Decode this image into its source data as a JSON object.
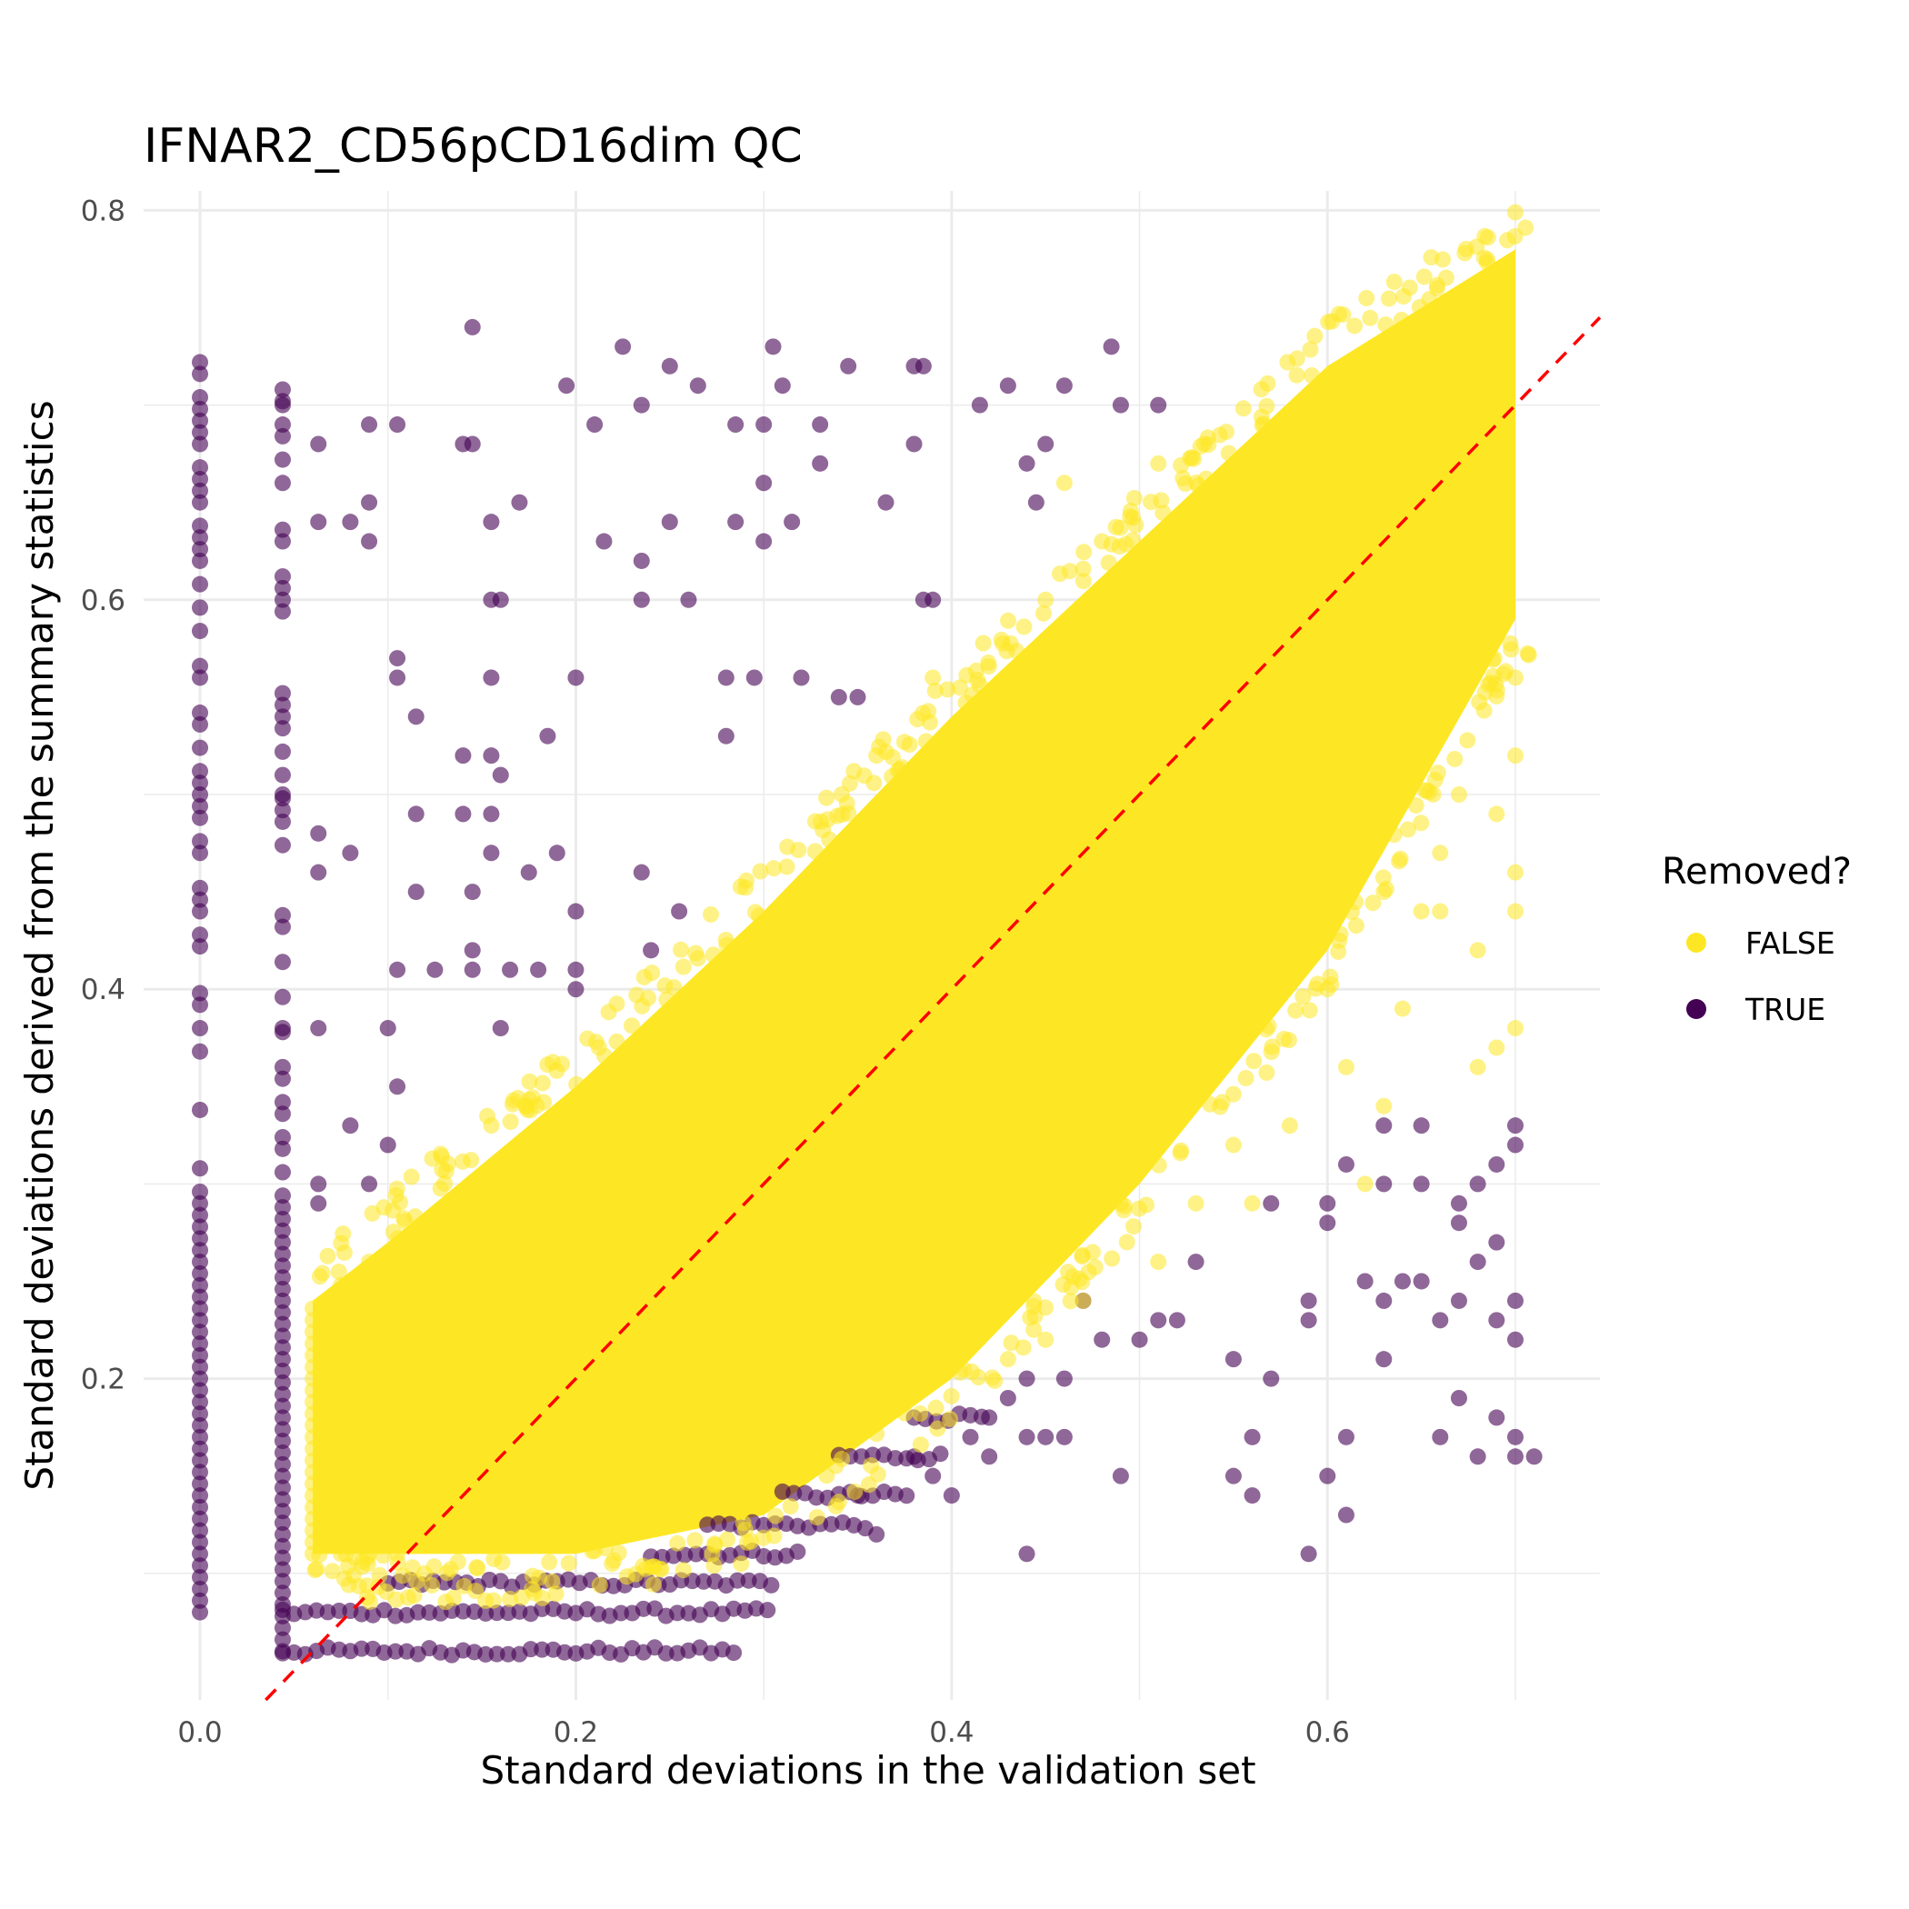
{
  "chart_data": {
    "type": "scatter",
    "title": "IFNAR2_CD56pCD16dim QC",
    "xlabel": "Standard deviations in the validation set",
    "ylabel": "Standard deviations derived from the summary statistics",
    "xlim": [
      -0.03,
      0.745
    ],
    "ylim": [
      0.035,
      0.81
    ],
    "xticks": [
      0.0,
      0.2,
      0.4,
      0.6
    ],
    "yticks": [
      0.2,
      0.4,
      0.6,
      0.8
    ],
    "xtick_labels": [
      "0.0",
      "0.2",
      "0.4",
      "0.6"
    ],
    "ytick_labels": [
      "0.2",
      "0.4",
      "0.6",
      "0.8"
    ],
    "grid": true,
    "legend": {
      "title": "Removed?",
      "position": "right",
      "entries": [
        {
          "label": "FALSE",
          "color": "#fde725"
        },
        {
          "label": "TRUE",
          "color": "#440154"
        }
      ]
    },
    "reference_line": {
      "type": "identity",
      "slope": 1,
      "intercept": 0,
      "color": "#ff0000",
      "style": "dashed"
    },
    "series": [
      {
        "name": "FALSE",
        "color": "#fde725",
        "opacity": 0.55,
        "band": {
          "x_range": [
            0.06,
            0.71
          ],
          "upper": [
            [
              0.06,
              0.24
            ],
            [
              0.1,
              0.27
            ],
            [
              0.2,
              0.35
            ],
            [
              0.3,
              0.44
            ],
            [
              0.4,
              0.54
            ],
            [
              0.5,
              0.63
            ],
            [
              0.6,
              0.72
            ],
            [
              0.7,
              0.78
            ]
          ],
          "lower": [
            [
              0.06,
              0.11
            ],
            [
              0.2,
              0.11
            ],
            [
              0.3,
              0.13
            ],
            [
              0.4,
              0.2
            ],
            [
              0.5,
              0.3
            ],
            [
              0.6,
              0.42
            ],
            [
              0.7,
              0.59
            ]
          ]
        },
        "outliers": [
          [
            0.51,
            0.67
          ],
          [
            0.54,
            0.62
          ],
          [
            0.45,
            0.6
          ],
          [
            0.46,
            0.66
          ],
          [
            0.48,
            0.63
          ],
          [
            0.39,
            0.56
          ],
          [
            0.36,
            0.52
          ],
          [
            0.61,
            0.36
          ],
          [
            0.58,
            0.33
          ],
          [
            0.55,
            0.32
          ],
          [
            0.56,
            0.29
          ],
          [
            0.62,
            0.3
          ],
          [
            0.63,
            0.34
          ],
          [
            0.66,
            0.44
          ],
          [
            0.68,
            0.42
          ],
          [
            0.69,
            0.49
          ],
          [
            0.7,
            0.46
          ],
          [
            0.7,
            0.44
          ],
          [
            0.69,
            0.37
          ],
          [
            0.7,
            0.38
          ],
          [
            0.68,
            0.36
          ],
          [
            0.64,
            0.39
          ],
          [
            0.6,
            0.4
          ],
          [
            0.63,
            0.45
          ],
          [
            0.53,
            0.29
          ],
          [
            0.49,
            0.29
          ],
          [
            0.51,
            0.26
          ],
          [
            0.47,
            0.24
          ],
          [
            0.45,
            0.22
          ],
          [
            0.43,
            0.21
          ],
          [
            0.66,
            0.47
          ],
          [
            0.67,
            0.5
          ],
          [
            0.7,
            0.52
          ],
          [
            0.7,
            0.56
          ],
          [
            0.65,
            0.44
          ]
        ]
      },
      {
        "name": "TRUE",
        "color": "#440154",
        "opacity": 0.6,
        "columns": [
          {
            "x": 0.0,
            "y_min": 0.08,
            "y_max": 0.74
          },
          {
            "x": 0.044,
            "y_min": 0.06,
            "y_max": 0.71
          }
        ],
        "rows": [
          {
            "y": 0.06,
            "x_min": 0.044,
            "x_max": 0.29
          },
          {
            "y": 0.08,
            "x_min": 0.044,
            "x_max": 0.305
          },
          {
            "y": 0.095,
            "x_min": 0.1,
            "x_max": 0.31
          },
          {
            "y": 0.11,
            "x_min": 0.24,
            "x_max": 0.32
          },
          {
            "y": 0.125,
            "x_min": 0.27,
            "x_max": 0.36
          },
          {
            "y": 0.14,
            "x_min": 0.31,
            "x_max": 0.38
          },
          {
            "y": 0.16,
            "x_min": 0.34,
            "x_max": 0.4
          },
          {
            "y": 0.18,
            "x_min": 0.38,
            "x_max": 0.42
          }
        ],
        "points": [
          [
            0.145,
            0.74
          ],
          [
            0.225,
            0.73
          ],
          [
            0.305,
            0.73
          ],
          [
            0.38,
            0.72
          ],
          [
            0.385,
            0.72
          ],
          [
            0.485,
            0.73
          ],
          [
            0.345,
            0.72
          ],
          [
            0.21,
            0.69
          ],
          [
            0.195,
            0.71
          ],
          [
            0.235,
            0.7
          ],
          [
            0.25,
            0.72
          ],
          [
            0.265,
            0.71
          ],
          [
            0.31,
            0.71
          ],
          [
            0.3,
            0.69
          ],
          [
            0.285,
            0.69
          ],
          [
            0.33,
            0.69
          ],
          [
            0.43,
            0.71
          ],
          [
            0.46,
            0.71
          ],
          [
            0.415,
            0.7
          ],
          [
            0.45,
            0.68
          ],
          [
            0.49,
            0.7
          ],
          [
            0.51,
            0.7
          ],
          [
            0.09,
            0.69
          ],
          [
            0.105,
            0.69
          ],
          [
            0.14,
            0.68
          ],
          [
            0.145,
            0.68
          ],
          [
            0.063,
            0.68
          ],
          [
            0.044,
            0.7
          ],
          [
            0.3,
            0.66
          ],
          [
            0.33,
            0.67
          ],
          [
            0.365,
            0.65
          ],
          [
            0.38,
            0.68
          ],
          [
            0.44,
            0.67
          ],
          [
            0.445,
            0.65
          ],
          [
            0.09,
            0.65
          ],
          [
            0.08,
            0.64
          ],
          [
            0.063,
            0.64
          ],
          [
            0.044,
            0.63
          ],
          [
            0.155,
            0.64
          ],
          [
            0.17,
            0.65
          ],
          [
            0.215,
            0.63
          ],
          [
            0.25,
            0.64
          ],
          [
            0.285,
            0.64
          ],
          [
            0.3,
            0.63
          ],
          [
            0.315,
            0.64
          ],
          [
            0.235,
            0.62
          ],
          [
            0.09,
            0.63
          ],
          [
            0.28,
            0.56
          ],
          [
            0.32,
            0.56
          ],
          [
            0.155,
            0.6
          ],
          [
            0.16,
            0.6
          ],
          [
            0.235,
            0.6
          ],
          [
            0.26,
            0.6
          ],
          [
            0.39,
            0.6
          ],
          [
            0.385,
            0.6
          ],
          [
            0.105,
            0.57
          ],
          [
            0.105,
            0.56
          ],
          [
            0.155,
            0.56
          ],
          [
            0.115,
            0.54
          ],
          [
            0.2,
            0.56
          ],
          [
            0.295,
            0.56
          ],
          [
            0.34,
            0.55
          ],
          [
            0.35,
            0.55
          ],
          [
            0.28,
            0.53
          ],
          [
            0.185,
            0.53
          ],
          [
            0.14,
            0.52
          ],
          [
            0.155,
            0.52
          ],
          [
            0.16,
            0.51
          ],
          [
            0.044,
            0.5
          ],
          [
            0.063,
            0.48
          ],
          [
            0.08,
            0.47
          ],
          [
            0.115,
            0.49
          ],
          [
            0.14,
            0.49
          ],
          [
            0.155,
            0.49
          ],
          [
            0.155,
            0.47
          ],
          [
            0.19,
            0.47
          ],
          [
            0.175,
            0.46
          ],
          [
            0.063,
            0.46
          ],
          [
            0.145,
            0.45
          ],
          [
            0.235,
            0.46
          ],
          [
            0.255,
            0.44
          ],
          [
            0.115,
            0.45
          ],
          [
            0.2,
            0.44
          ],
          [
            0.145,
            0.42
          ],
          [
            0.145,
            0.41
          ],
          [
            0.105,
            0.41
          ],
          [
            0.125,
            0.41
          ],
          [
            0.165,
            0.41
          ],
          [
            0.18,
            0.41
          ],
          [
            0.2,
            0.41
          ],
          [
            0.24,
            0.42
          ],
          [
            0.044,
            0.38
          ],
          [
            0.063,
            0.38
          ],
          [
            0.2,
            0.4
          ],
          [
            0.16,
            0.38
          ],
          [
            0.105,
            0.35
          ],
          [
            0.08,
            0.33
          ],
          [
            0.1,
            0.38
          ],
          [
            0.1,
            0.32
          ],
          [
            0.063,
            0.3
          ],
          [
            0.09,
            0.3
          ],
          [
            0.063,
            0.29
          ],
          [
            0.63,
            0.33
          ],
          [
            0.65,
            0.33
          ],
          [
            0.69,
            0.31
          ],
          [
            0.7,
            0.32
          ],
          [
            0.7,
            0.33
          ],
          [
            0.61,
            0.31
          ],
          [
            0.63,
            0.3
          ],
          [
            0.65,
            0.3
          ],
          [
            0.67,
            0.29
          ],
          [
            0.67,
            0.28
          ],
          [
            0.68,
            0.3
          ],
          [
            0.69,
            0.27
          ],
          [
            0.68,
            0.26
          ],
          [
            0.7,
            0.24
          ],
          [
            0.62,
            0.25
          ],
          [
            0.63,
            0.24
          ],
          [
            0.64,
            0.25
          ],
          [
            0.65,
            0.25
          ],
          [
            0.67,
            0.24
          ],
          [
            0.69,
            0.23
          ],
          [
            0.59,
            0.24
          ],
          [
            0.59,
            0.23
          ],
          [
            0.6,
            0.29
          ],
          [
            0.57,
            0.29
          ],
          [
            0.6,
            0.28
          ],
          [
            0.47,
            0.24
          ],
          [
            0.51,
            0.23
          ],
          [
            0.52,
            0.23
          ],
          [
            0.53,
            0.26
          ],
          [
            0.48,
            0.22
          ],
          [
            0.5,
            0.22
          ],
          [
            0.55,
            0.21
          ],
          [
            0.57,
            0.2
          ],
          [
            0.63,
            0.21
          ],
          [
            0.66,
            0.23
          ],
          [
            0.7,
            0.22
          ],
          [
            0.67,
            0.19
          ],
          [
            0.69,
            0.18
          ],
          [
            0.56,
            0.17
          ],
          [
            0.61,
            0.17
          ],
          [
            0.66,
            0.17
          ],
          [
            0.68,
            0.16
          ],
          [
            0.7,
            0.16
          ],
          [
            0.71,
            0.16
          ],
          [
            0.7,
            0.17
          ],
          [
            0.49,
            0.15
          ],
          [
            0.55,
            0.15
          ],
          [
            0.56,
            0.14
          ],
          [
            0.6,
            0.15
          ],
          [
            0.61,
            0.13
          ],
          [
            0.59,
            0.11
          ],
          [
            0.44,
            0.11
          ],
          [
            0.45,
            0.17
          ],
          [
            0.42,
            0.18
          ],
          [
            0.43,
            0.19
          ],
          [
            0.44,
            0.17
          ],
          [
            0.46,
            0.17
          ],
          [
            0.46,
            0.2
          ],
          [
            0.44,
            0.2
          ],
          [
            0.4,
            0.14
          ],
          [
            0.36,
            0.12
          ],
          [
            0.35,
            0.14
          ],
          [
            0.41,
            0.17
          ],
          [
            0.38,
            0.16
          ],
          [
            0.39,
            0.15
          ],
          [
            0.42,
            0.16
          ]
        ]
      }
    ]
  }
}
